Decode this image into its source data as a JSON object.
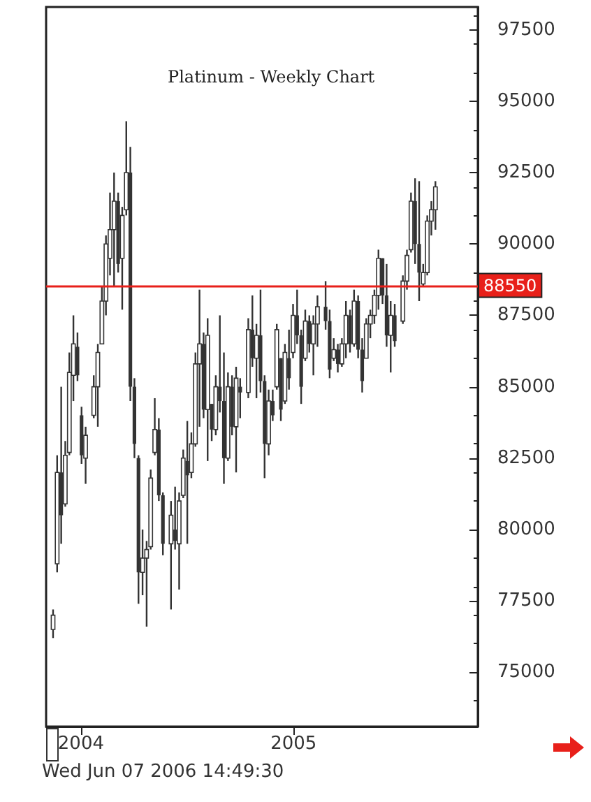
{
  "chart_data": {
    "type": "candlestick",
    "title": "Platinum - Weekly Chart",
    "color": "#333333",
    "x": [
      "2003-11-14",
      "2003-11-21",
      "2003-11-28",
      "2003-12-05",
      "2003-12-12",
      "2003-12-19",
      "2003-12-26",
      "2004-01-02",
      "2004-01-09",
      "2004-01-23",
      "2004-01-30",
      "2004-02-06",
      "2004-02-13",
      "2004-02-20",
      "2004-02-27",
      "2004-03-05",
      "2004-03-12",
      "2004-03-19",
      "2004-03-26",
      "2004-04-02",
      "2004-04-09",
      "2004-04-16",
      "2004-04-23",
      "2004-04-30",
      "2004-05-07",
      "2004-05-14",
      "2004-05-21",
      "2004-06-04",
      "2004-06-11",
      "2004-06-18",
      "2004-06-25",
      "2004-07-02",
      "2004-07-09",
      "2004-07-16",
      "2004-07-23",
      "2004-07-30",
      "2004-08-06",
      "2004-08-13",
      "2004-08-20",
      "2004-08-27",
      "2004-09-03",
      "2004-09-10",
      "2004-09-17",
      "2004-09-24",
      "2004-10-01",
      "2004-10-15",
      "2004-10-22",
      "2004-10-29",
      "2004-11-05",
      "2004-11-12",
      "2004-11-19",
      "2004-11-26",
      "2004-12-03",
      "2004-12-10",
      "2004-12-17",
      "2004-12-24",
      "2004-12-31",
      "2005-01-07",
      "2005-01-14",
      "2005-01-21",
      "2005-01-28",
      "2005-02-04",
      "2005-02-11",
      "2005-02-25",
      "2005-03-04",
      "2005-03-11",
      "2005-03-18",
      "2005-03-25",
      "2005-04-01",
      "2005-04-08",
      "2005-04-15",
      "2005-04-22",
      "2005-04-29",
      "2005-05-06",
      "2005-05-13",
      "2005-05-20",
      "2005-05-27",
      "2005-06-03",
      "2005-06-10",
      "2005-06-17",
      "2005-06-24",
      "2005-07-08",
      "2005-07-15",
      "2005-07-22",
      "2005-07-29",
      "2005-08-05",
      "2005-08-12",
      "2005-08-19",
      "2005-08-26",
      "2005-09-02"
    ],
    "ohlc": [
      [
        76500,
        77200,
        76200,
        77000
      ],
      [
        78800,
        82600,
        78500,
        82000
      ],
      [
        82000,
        85000,
        79500,
        80500
      ],
      [
        80900,
        83100,
        80800,
        82600
      ],
      [
        82700,
        86200,
        82600,
        85500
      ],
      [
        85400,
        87500,
        84500,
        86500
      ],
      [
        86400,
        86900,
        85200,
        85400
      ],
      [
        84000,
        84300,
        82300,
        82600
      ],
      [
        82500,
        83600,
        81600,
        83300
      ],
      [
        84000,
        85400,
        83900,
        85000
      ],
      [
        85000,
        86500,
        83600,
        86200
      ],
      [
        86500,
        88500,
        86500,
        88000
      ],
      [
        88000,
        90300,
        87500,
        90000
      ],
      [
        89500,
        91800,
        88900,
        90500
      ],
      [
        90500,
        92500,
        88500,
        91500
      ],
      [
        91500,
        91800,
        89000,
        89300
      ],
      [
        89500,
        91300,
        87700,
        91000
      ],
      [
        91200,
        94300,
        91000,
        92500
      ],
      [
        92500,
        93400,
        84500,
        85000
      ],
      [
        85000,
        85300,
        82500,
        83000
      ],
      [
        82500,
        82600,
        77400,
        78500
      ],
      [
        78500,
        80000,
        77700,
        79000
      ],
      [
        79000,
        79600,
        76600,
        79300
      ],
      [
        79400,
        82100,
        79300,
        81800
      ],
      [
        82700,
        84600,
        82600,
        83500
      ],
      [
        83500,
        83900,
        81000,
        81200
      ],
      [
        81200,
        81300,
        79100,
        79500
      ],
      [
        79500,
        81000,
        77200,
        80500
      ],
      [
        80000,
        81500,
        79300,
        79600
      ],
      [
        79500,
        81300,
        77900,
        81000
      ],
      [
        81200,
        82800,
        81100,
        82500
      ],
      [
        82400,
        83800,
        79500,
        81900
      ],
      [
        82000,
        83400,
        81800,
        83000
      ],
      [
        83000,
        86200,
        82900,
        85800
      ],
      [
        85800,
        88400,
        83600,
        86500
      ],
      [
        86500,
        86900,
        83900,
        84200
      ],
      [
        84200,
        87400,
        82400,
        86800
      ],
      [
        84400,
        84400,
        83100,
        83500
      ],
      [
        83500,
        85400,
        83300,
        85000
      ],
      [
        85000,
        87500,
        84100,
        84500
      ],
      [
        84500,
        86200,
        81600,
        82500
      ],
      [
        82500,
        85500,
        82400,
        85000
      ],
      [
        85000,
        85400,
        83300,
        83600
      ],
      [
        83600,
        85700,
        82000,
        85300
      ],
      [
        85000,
        85300,
        83900,
        84800
      ],
      [
        84800,
        87400,
        84600,
        87000
      ],
      [
        87000,
        88200,
        85700,
        86000
      ],
      [
        86000,
        87200,
        84600,
        86800
      ],
      [
        86800,
        88400,
        84800,
        85200
      ],
      [
        85200,
        85400,
        81800,
        83000
      ],
      [
        83000,
        84900,
        82600,
        84500
      ],
      [
        84500,
        84900,
        83800,
        84000
      ],
      [
        85000,
        87200,
        84900,
        87000
      ],
      [
        86000,
        86000,
        83800,
        84200
      ],
      [
        84500,
        86500,
        84400,
        86200
      ],
      [
        86000,
        87000,
        84900,
        85300
      ],
      [
        86200,
        87900,
        86000,
        87500
      ],
      [
        87500,
        88400,
        86500,
        86800
      ],
      [
        86800,
        87000,
        84400,
        85000
      ],
      [
        86000,
        87700,
        85900,
        87300
      ],
      [
        87300,
        87500,
        86200,
        86500
      ],
      [
        86500,
        87500,
        85400,
        87200
      ],
      [
        87200,
        88200,
        86400,
        87800
      ],
      [
        87800,
        88700,
        87000,
        87300
      ],
      [
        87300,
        87700,
        85300,
        85600
      ],
      [
        86000,
        86700,
        85900,
        86300
      ],
      [
        86300,
        86500,
        85500,
        85800
      ],
      [
        85800,
        86700,
        85700,
        86500
      ],
      [
        86500,
        88000,
        86000,
        87500
      ],
      [
        87500,
        87700,
        86200,
        86500
      ],
      [
        86500,
        88400,
        86400,
        88000
      ],
      [
        88000,
        88200,
        86000,
        86300
      ],
      [
        86300,
        86700,
        84800,
        85200
      ],
      [
        86000,
        87400,
        86000,
        87200
      ],
      [
        87200,
        87700,
        86700,
        87500
      ],
      [
        87500,
        88400,
        87200,
        88200
      ],
      [
        88200,
        89800,
        87700,
        89500
      ],
      [
        89500,
        89500,
        87900,
        88200
      ],
      [
        88200,
        89300,
        86400,
        86800
      ],
      [
        86800,
        88000,
        85500,
        87500
      ],
      [
        87500,
        87900,
        86400,
        86600
      ],
      [
        87300,
        88900,
        87200,
        88700
      ],
      [
        88700,
        89800,
        88400,
        89600
      ],
      [
        89800,
        91800,
        89700,
        91500
      ],
      [
        91500,
        92300,
        89300,
        90000
      ],
      [
        90000,
        92200,
        88000,
        89000
      ],
      [
        88600,
        89300,
        88500,
        89000
      ],
      [
        89000,
        91000,
        88900,
        90800
      ],
      [
        90800,
        91500,
        90300,
        91200
      ],
      [
        91200,
        92200,
        90500,
        92000
      ]
    ],
    "xlim": [
      "2003-11-02",
      "2005-11-14"
    ],
    "xticks": [
      {
        "value": "2004-01-01",
        "label": "2004"
      },
      {
        "value": "2005-01-01",
        "label": "2005"
      }
    ],
    "ylim": [
      73100,
      98300
    ],
    "yticks": [
      75000,
      77500,
      80000,
      82500,
      85000,
      87500,
      90000,
      92500,
      95000,
      97500
    ],
    "ref_lines": [
      {
        "axis": "y",
        "value": 88550,
        "label": "88550",
        "color": "#e8201a"
      }
    ],
    "annotations": [
      "Wed Jun 07 2006 14:49:30"
    ]
  }
}
